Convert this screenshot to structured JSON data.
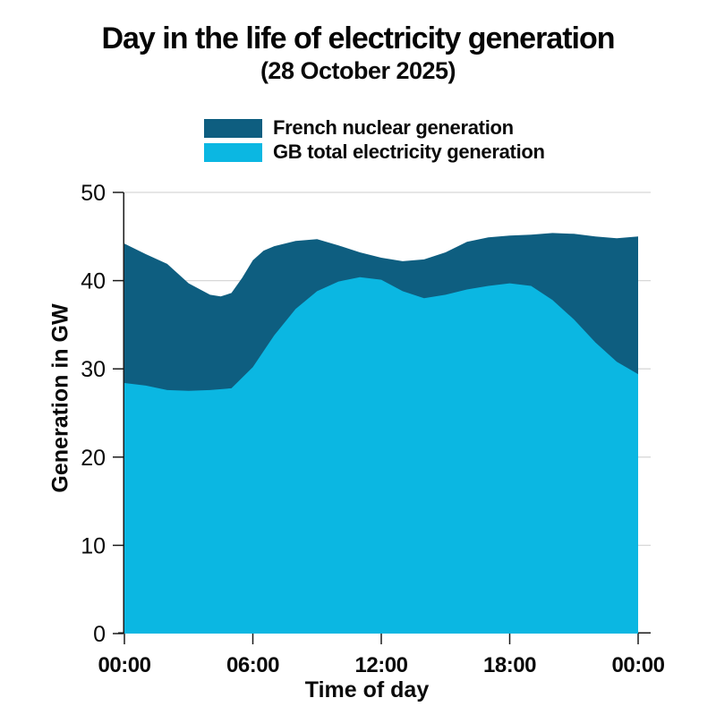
{
  "chart_data": {
    "type": "area",
    "title": "Day in the life of electricity generation",
    "subtitle": "(28 October 2025)",
    "xlabel": "Time of day",
    "ylabel": "Generation in GW",
    "xlim": [
      0,
      24
    ],
    "ylim": [
      0,
      50
    ],
    "grid": "horizontal",
    "legend_position": "top",
    "x_ticks": [
      {
        "pos": 0,
        "label": "00:00"
      },
      {
        "pos": 6,
        "label": "06:00"
      },
      {
        "pos": 12,
        "label": "12:00"
      },
      {
        "pos": 18,
        "label": "18:00"
      },
      {
        "pos": 24,
        "label": "00:00"
      }
    ],
    "y_ticks": [
      0,
      10,
      20,
      30,
      40,
      50
    ],
    "series": [
      {
        "name": "French nuclear generation",
        "color": "#0e5e80",
        "x": [
          0,
          1,
          2,
          3,
          4,
          4.5,
          5,
          5.5,
          6,
          6.5,
          7,
          8,
          9,
          10,
          11,
          12,
          13,
          14,
          15,
          16,
          17,
          18,
          19,
          20,
          21,
          22,
          23,
          24
        ],
        "values": [
          44.2,
          43.0,
          41.9,
          39.7,
          38.4,
          38.2,
          38.6,
          40.3,
          42.3,
          43.4,
          43.9,
          44.5,
          44.7,
          44.0,
          43.2,
          42.6,
          42.2,
          42.4,
          43.2,
          44.4,
          44.9,
          45.1,
          45.2,
          45.4,
          45.3,
          45.0,
          44.8,
          45.0
        ]
      },
      {
        "name": "GB total electricity generation",
        "color": "#0bb7e2",
        "x": [
          0,
          1,
          2,
          3,
          4,
          5,
          6,
          7,
          8,
          9,
          10,
          11,
          12,
          13,
          14,
          15,
          16,
          17,
          18,
          19,
          20,
          21,
          22,
          23,
          24
        ],
        "values": [
          28.4,
          28.1,
          27.6,
          27.5,
          27.6,
          27.8,
          30.2,
          33.8,
          36.8,
          38.8,
          39.9,
          40.4,
          40.1,
          38.8,
          38.0,
          38.4,
          39.0,
          39.4,
          39.7,
          39.4,
          37.8,
          35.6,
          33.0,
          30.8,
          29.4
        ]
      }
    ]
  },
  "colors": {
    "grid": "#d8d8d8",
    "axis": "#1a1a1a",
    "text": "#0a0a0a"
  }
}
